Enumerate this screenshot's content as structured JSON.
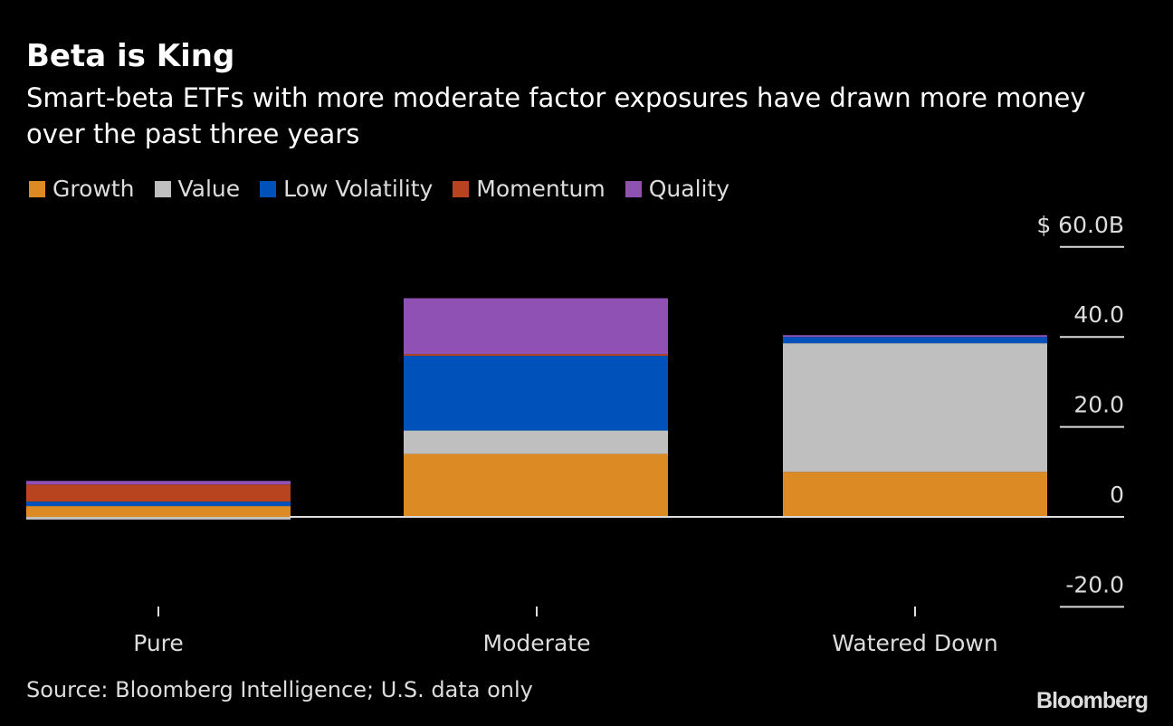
{
  "title": "Beta is King",
  "subtitle": "Smart-beta ETFs with more moderate factor exposures have drawn more money over the past three years",
  "source": "Source: Bloomberg Intelligence; U.S. data only",
  "logo": "Bloomberg",
  "chart_data": {
    "type": "bar",
    "stacked": true,
    "categories": [
      "Pure",
      "Moderate",
      "Watered Down"
    ],
    "series": [
      {
        "name": "Growth",
        "color": "#dc8a23",
        "values": [
          2.4,
          14.0,
          10.0
        ]
      },
      {
        "name": "Value",
        "color": "#bfbfbf",
        "values": [
          -0.6,
          5.2,
          28.6
        ]
      },
      {
        "name": "Low Volatility",
        "color": "#0052bb",
        "values": [
          1.0,
          16.6,
          1.4
        ]
      },
      {
        "name": "Momentum",
        "color": "#b8431f",
        "values": [
          3.8,
          0.4,
          0.0
        ]
      },
      {
        "name": "Quality",
        "color": "#8f52b4",
        "values": [
          0.8,
          12.4,
          0.4
        ]
      }
    ],
    "ylabel": "",
    "unit": "$B",
    "ylim": [
      -20,
      60
    ],
    "yticks": [
      {
        "value": 60,
        "label": "$ 60.0B"
      },
      {
        "value": 40,
        "label": "40.0"
      },
      {
        "value": 20,
        "label": "20.0"
      },
      {
        "value": 0,
        "label": "0"
      },
      {
        "value": -20,
        "label": "-20.0"
      }
    ],
    "legend_position": "top-left",
    "grid": false
  }
}
